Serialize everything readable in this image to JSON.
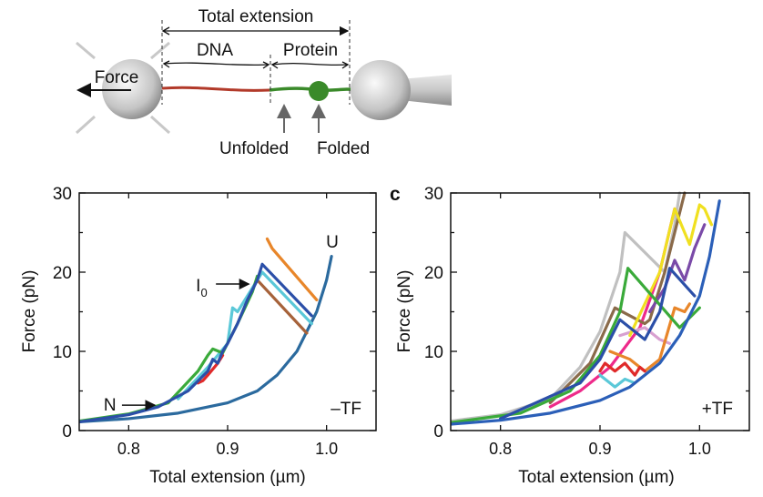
{
  "diagram": {
    "total_extension": "Total extension",
    "dna": "DNA",
    "protein": "Protein",
    "force": "Force",
    "unfolded": "Unfolded",
    "folded": "Folded",
    "colors": {
      "dna": "#b23a2a",
      "protein": "#3a8a2a",
      "bead": "#c8c8c8"
    }
  },
  "chart_data": [
    {
      "type": "line",
      "panel_label": "",
      "xlabel": "Total extension (µm)",
      "ylabel": "Force (pN)",
      "xlim": [
        0.75,
        1.05
      ],
      "ylim": [
        0,
        30
      ],
      "xticks": [
        "0.8",
        "0.9",
        "1.0"
      ],
      "xtick_values": [
        0.8,
        0.9,
        1.0
      ],
      "yticks": [
        "0",
        "10",
        "20",
        "30"
      ],
      "ytick_values": [
        0,
        10,
        20,
        30
      ],
      "condition": "–TF",
      "annotations": [
        {
          "text": "N",
          "x": 0.83,
          "y": 3.2
        },
        {
          "text": "I",
          "sub": "0",
          "x": 0.925,
          "y": 18.5
        },
        {
          "text": "U",
          "x": 1.005,
          "y": 23
        }
      ],
      "series": [
        {
          "color": "#2b6a9e",
          "points": [
            [
              0.75,
              1.1
            ],
            [
              0.8,
              1.5
            ],
            [
              0.85,
              2.2
            ],
            [
              0.9,
              3.5
            ],
            [
              0.93,
              5
            ],
            [
              0.95,
              7
            ],
            [
              0.97,
              10
            ],
            [
              0.98,
              12.5
            ],
            [
              0.99,
              15
            ],
            [
              1.0,
              19
            ],
            [
              1.005,
              22
            ]
          ]
        },
        {
          "color": "#e8862a",
          "points": [
            [
              0.94,
              24.2
            ],
            [
              0.945,
              23
            ],
            [
              0.99,
              16.5
            ]
          ]
        },
        {
          "color": "#a6623a",
          "points": [
            [
              0.93,
              19
            ],
            [
              0.98,
              12.3
            ]
          ]
        },
        {
          "color": "#5bc8d8",
          "points": [
            [
              0.85,
              4
            ],
            [
              0.88,
              8
            ],
            [
              0.9,
              11
            ],
            [
              0.905,
              15.5
            ],
            [
              0.91,
              15
            ],
            [
              0.92,
              17
            ],
            [
              0.935,
              20
            ],
            [
              0.985,
              13.5
            ]
          ]
        },
        {
          "color": "#e02a2a",
          "points": [
            [
              0.87,
              6
            ],
            [
              0.875,
              6.3
            ],
            [
              0.88,
              7
            ],
            [
              0.89,
              8.5
            ],
            [
              0.895,
              9.5
            ]
          ]
        },
        {
          "color": "#3aaa3a",
          "points": [
            [
              0.75,
              1.2
            ],
            [
              0.8,
              2.1
            ],
            [
              0.84,
              3.5
            ],
            [
              0.87,
              7.5
            ],
            [
              0.88,
              9.5
            ],
            [
              0.885,
              10.3
            ],
            [
              0.895,
              9.8
            ],
            [
              0.91,
              13.5
            ],
            [
              0.925,
              17.5
            ],
            [
              0.93,
              19.5
            ]
          ]
        },
        {
          "color": "#2b4fa8",
          "points": [
            [
              0.75,
              1.1
            ],
            [
              0.8,
              2
            ],
            [
              0.83,
              3
            ],
            [
              0.86,
              5
            ],
            [
              0.88,
              7.5
            ],
            [
              0.885,
              9
            ],
            [
              0.89,
              8.5
            ],
            [
              0.895,
              10
            ],
            [
              0.9,
              11
            ],
            [
              0.91,
              13.5
            ],
            [
              0.92,
              16.5
            ],
            [
              0.93,
              19
            ],
            [
              0.935,
              21
            ],
            [
              0.985,
              14.5
            ]
          ]
        }
      ]
    },
    {
      "type": "line",
      "panel_label": "c",
      "xlabel": "Total extension (µm)",
      "ylabel": "Force (pN)",
      "xlim": [
        0.75,
        1.05
      ],
      "ylim": [
        0,
        30
      ],
      "xticks": [
        "0.8",
        "0.9",
        "1.0"
      ],
      "xtick_values": [
        0.8,
        0.9,
        1.0
      ],
      "yticks": [
        "0",
        "10",
        "20",
        "30"
      ],
      "ytick_values": [
        0,
        10,
        20,
        30
      ],
      "condition": "+TF",
      "annotations": [],
      "series": [
        {
          "color": "#c0c0c0",
          "points": [
            [
              0.75,
              1.2
            ],
            [
              0.8,
              2
            ],
            [
              0.85,
              4
            ],
            [
              0.88,
              8
            ],
            [
              0.9,
              12.5
            ],
            [
              0.92,
              20
            ],
            [
              0.925,
              25
            ],
            [
              0.965,
              20
            ],
            [
              0.975,
              26
            ],
            [
              0.98,
              30
            ]
          ]
        },
        {
          "color": "#ee2a8a",
          "points": [
            [
              0.85,
              3
            ],
            [
              0.88,
              5
            ],
            [
              0.91,
              8
            ],
            [
              0.94,
              13
            ],
            [
              0.96,
              20
            ],
            [
              0.975,
              28
            ]
          ]
        },
        {
          "color": "#8a6a4a",
          "points": [
            [
              0.85,
              3.5
            ],
            [
              0.89,
              8.5
            ],
            [
              0.915,
              15.5
            ],
            [
              0.945,
              13.5
            ],
            [
              0.95,
              14
            ],
            [
              0.965,
              20
            ],
            [
              0.975,
              25
            ],
            [
              0.985,
              30
            ]
          ]
        },
        {
          "color": "#d8a0d0",
          "points": [
            [
              0.92,
              12
            ],
            [
              0.945,
              13
            ],
            [
              0.96,
              11.5
            ],
            [
              0.97,
              11
            ]
          ]
        },
        {
          "color": "#e8862a",
          "points": [
            [
              0.91,
              10
            ],
            [
              0.93,
              9
            ],
            [
              0.945,
              7.5
            ],
            [
              0.96,
              9
            ],
            [
              0.975,
              15.5
            ],
            [
              0.985,
              15
            ],
            [
              0.99,
              16
            ]
          ]
        },
        {
          "color": "#e02a2a",
          "points": [
            [
              0.9,
              7.5
            ],
            [
              0.905,
              8.5
            ],
            [
              0.915,
              7.5
            ],
            [
              0.925,
              8.5
            ],
            [
              0.935,
              7
            ],
            [
              0.94,
              8
            ],
            [
              0.945,
              7.5
            ]
          ]
        },
        {
          "color": "#5bc8d8",
          "points": [
            [
              0.9,
              7
            ],
            [
              0.915,
              5.5
            ],
            [
              0.925,
              6.5
            ],
            [
              0.935,
              6
            ]
          ]
        },
        {
          "color": "#f0e020",
          "points": [
            [
              0.93,
              12
            ],
            [
              0.96,
              20
            ],
            [
              0.975,
              28
            ],
            [
              0.99,
              23.5
            ],
            [
              1.0,
              28.5
            ],
            [
              1.005,
              28
            ],
            [
              1.012,
              26
            ]
          ]
        },
        {
          "color": "#7a4aa8",
          "points": [
            [
              0.95,
              15
            ],
            [
              0.965,
              18
            ],
            [
              0.975,
              21.5
            ],
            [
              0.985,
              19
            ],
            [
              0.995,
              23
            ],
            [
              1.005,
              26
            ]
          ]
        },
        {
          "color": "#3aaa3a",
          "points": [
            [
              0.75,
              1
            ],
            [
              0.82,
              2.2
            ],
            [
              0.87,
              5
            ],
            [
              0.9,
              9.5
            ],
            [
              0.92,
              15
            ],
            [
              0.928,
              20.5
            ],
            [
              0.98,
              13
            ],
            [
              1.0,
              15.5
            ]
          ]
        },
        {
          "color": "#2b4fa8",
          "points": [
            [
              0.8,
              1.5
            ],
            [
              0.88,
              6
            ],
            [
              0.9,
              9
            ],
            [
              0.92,
              14
            ],
            [
              0.945,
              11.5
            ],
            [
              0.96,
              15
            ],
            [
              0.97,
              20.5
            ],
            [
              0.995,
              17
            ]
          ]
        },
        {
          "color": "#2b5fb8",
          "points": [
            [
              0.75,
              0.8
            ],
            [
              0.8,
              1.3
            ],
            [
              0.85,
              2.2
            ],
            [
              0.9,
              3.8
            ],
            [
              0.93,
              5.5
            ],
            [
              0.96,
              8.5
            ],
            [
              0.98,
              12
            ],
            [
              1.0,
              17
            ],
            [
              1.01,
              22
            ],
            [
              1.02,
              29
            ]
          ]
        }
      ]
    }
  ]
}
